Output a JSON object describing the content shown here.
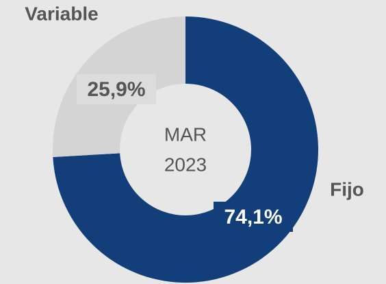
{
  "chart_data": {
    "type": "donut",
    "categories": [
      "Fijo",
      "Variable"
    ],
    "values": [
      74.1,
      25.9
    ],
    "value_labels": [
      "74,1%",
      "25,9%"
    ],
    "colors": [
      "#123f7a",
      "#d4d4d4"
    ],
    "center_text": [
      "MAR",
      "2023"
    ]
  }
}
